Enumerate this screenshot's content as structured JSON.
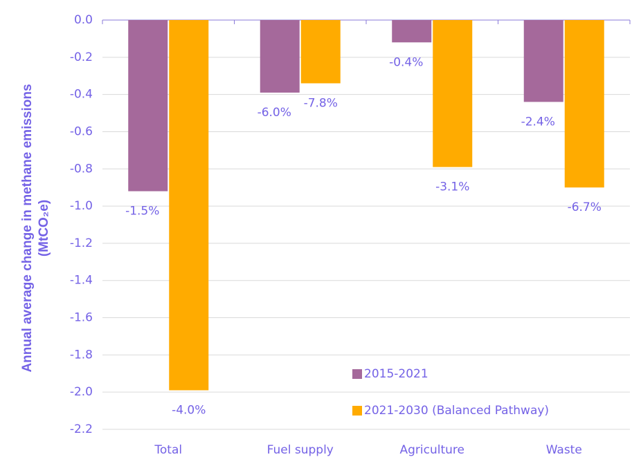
{
  "chart_data": {
    "type": "bar",
    "y_label": [
      "Annual average change in methane emissions",
      "(MtCO₂e)"
    ],
    "categories": [
      "Total",
      "Fuel supply",
      "Agriculture",
      "Waste"
    ],
    "series": [
      {
        "name": "2015-2021",
        "color": "#a5699b",
        "values": [
          -0.92,
          -0.39,
          -0.12,
          -0.44
        ],
        "percent_labels": [
          "-1.5%",
          "-6.0%",
          "-0.4%",
          "-2.4%"
        ]
      },
      {
        "name": "2021-2030 (Balanced Pathway)",
        "color": "#ffab00",
        "values": [
          -1.99,
          -0.34,
          -0.79,
          -0.9
        ],
        "percent_labels": [
          "-4.0%",
          "-7.8%",
          "-3.1%",
          "-6.7%"
        ]
      }
    ],
    "ylim": [
      -2.2,
      0
    ],
    "yticks": [
      {
        "value": 0,
        "label": "0.0"
      },
      -0.2,
      -0.4,
      -0.6,
      -0.8,
      {
        "value": -1,
        "label": "-1.0"
      },
      -1.2,
      -1.4,
      -1.6,
      -1.8,
      {
        "value": -2,
        "label": "-2.0"
      },
      -2.2
    ],
    "grid": true
  }
}
